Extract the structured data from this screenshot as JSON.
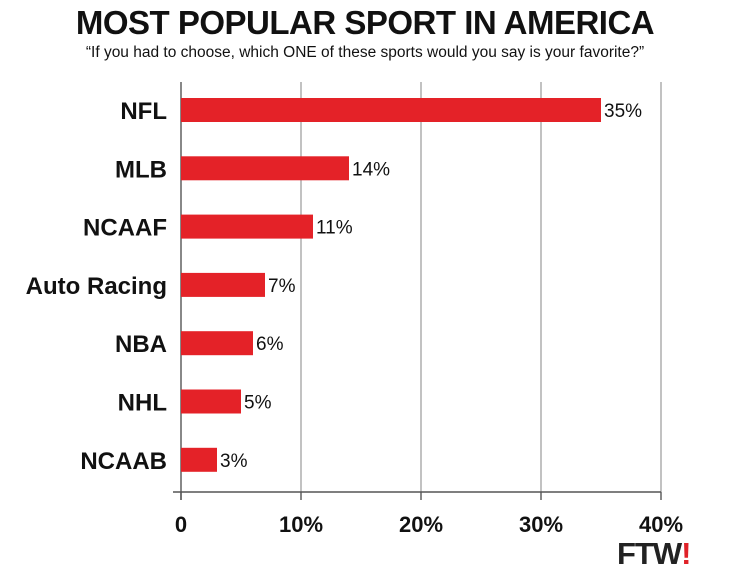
{
  "chart_data": {
    "type": "bar",
    "orientation": "horizontal",
    "title": "MOST POPULAR SPORT IN AMERICA",
    "subtitle": "“If you had to choose, which ONE of these sports would you say is your favorite?”",
    "categories": [
      "NFL",
      "MLB",
      "NCAAF",
      "Auto Racing",
      "NBA",
      "NHL",
      "NCAAB"
    ],
    "values": [
      35,
      14,
      11,
      7,
      6,
      5,
      3
    ],
    "data_labels": [
      "35%",
      "14%",
      "11%",
      "7%",
      "6%",
      "5%",
      "3%"
    ],
    "xticks": [
      0,
      10,
      20,
      30,
      40
    ],
    "xtick_labels": [
      "0",
      "10%",
      "20%",
      "30%",
      "40%"
    ],
    "xlim": [
      0,
      40
    ],
    "grid": "vertical",
    "bar_color": "#e42228"
  },
  "logo": {
    "text": "FTW",
    "bang": "!"
  }
}
